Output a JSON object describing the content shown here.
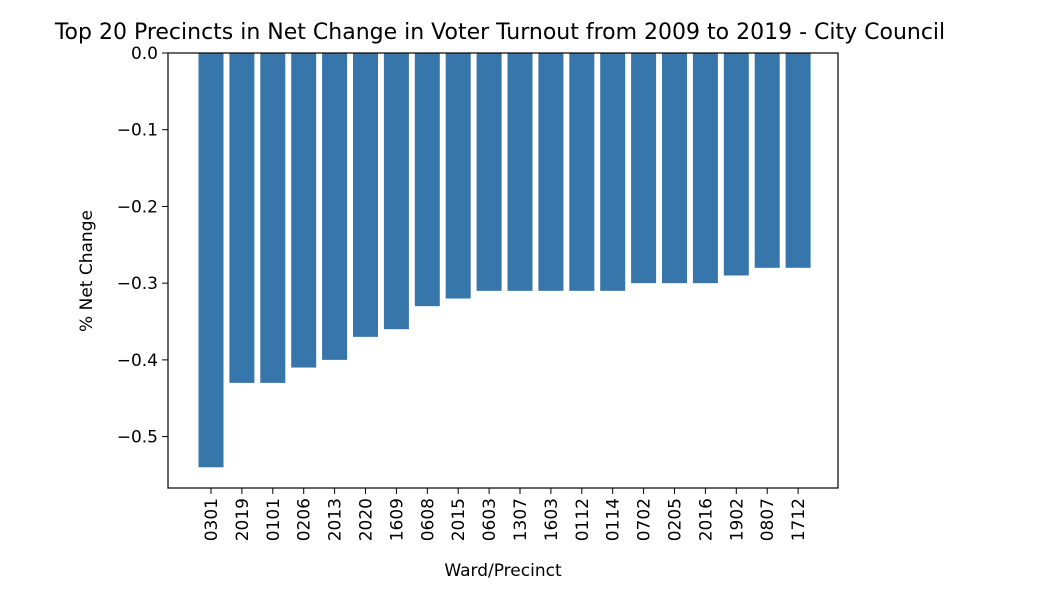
{
  "chart_data": {
    "type": "bar",
    "title": "Top 20 Precincts in Net Change in Voter Turnout from 2009 to 2019 - City Council",
    "xlabel": "Ward/Precinct",
    "ylabel": "% Net Change",
    "categories": [
      "0301",
      "2019",
      "0101",
      "0206",
      "2013",
      "2020",
      "1609",
      "0608",
      "2015",
      "0603",
      "1307",
      "1603",
      "0112",
      "0114",
      "0702",
      "0205",
      "2016",
      "1902",
      "0807",
      "1712"
    ],
    "values": [
      -0.54,
      -0.43,
      -0.43,
      -0.41,
      -0.4,
      -0.37,
      -0.36,
      -0.33,
      -0.32,
      -0.31,
      -0.31,
      -0.31,
      -0.31,
      -0.31,
      -0.3,
      -0.3,
      -0.3,
      -0.29,
      -0.28,
      -0.28
    ],
    "yticks": [
      0.0,
      -0.1,
      -0.2,
      -0.3,
      -0.4,
      -0.5
    ],
    "ytick_labels": [
      "0.0",
      "−0.1",
      "−0.2",
      "−0.3",
      "−0.4",
      "−0.5"
    ],
    "ylim": [
      -0.567,
      0.0
    ],
    "bar_color": "#3776ab",
    "grid": false,
    "legend": "none"
  }
}
